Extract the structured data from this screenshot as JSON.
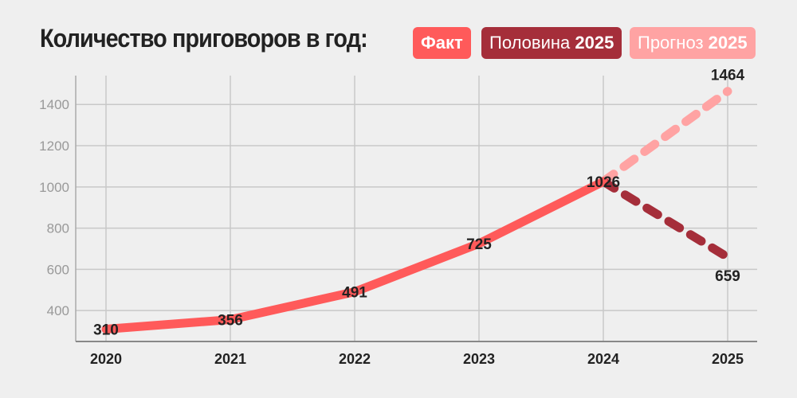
{
  "chart_data": {
    "type": "line",
    "title": "Количество приговоров в год:",
    "legend": [
      {
        "label": "Факт",
        "bold": "",
        "color": "#ff5a5a"
      },
      {
        "label": "Половина ",
        "bold": "2025",
        "color": "#a52e3a"
      },
      {
        "label": "Прогноз ",
        "bold": "2025",
        "color": "#ffa3a3"
      }
    ],
    "categories": [
      "2020",
      "2021",
      "2022",
      "2023",
      "2024",
      "2025"
    ],
    "series": [
      {
        "name": "Факт",
        "x": [
          "2020",
          "2021",
          "2022",
          "2023",
          "2024"
        ],
        "values": [
          310,
          356,
          491,
          725,
          1026
        ],
        "color": "#ff5a5a",
        "style": "solid"
      },
      {
        "name": "Половина 2025",
        "x": [
          "2024",
          "2025"
        ],
        "values": [
          1026,
          659
        ],
        "color": "#a52e3a",
        "style": "dashed"
      },
      {
        "name": "Прогноз 2025",
        "x": [
          "2024",
          "2025"
        ],
        "values": [
          1026,
          1464
        ],
        "color": "#ffa3a3",
        "style": "dashed"
      }
    ],
    "data_labels": [
      {
        "x": "2020",
        "value": "310"
      },
      {
        "x": "2021",
        "value": "356"
      },
      {
        "x": "2022",
        "value": "491"
      },
      {
        "x": "2023",
        "value": "725"
      },
      {
        "x": "2024",
        "value": "1026"
      },
      {
        "x": "2025",
        "value": "1464",
        "pos": "above"
      },
      {
        "x": "2025",
        "value": "659",
        "pos": "below"
      }
    ],
    "yticks": [
      400,
      600,
      800,
      1000,
      1200,
      1400
    ],
    "ylim": [
      250,
      1540
    ],
    "grid": true,
    "xlabel": "",
    "ylabel": ""
  }
}
